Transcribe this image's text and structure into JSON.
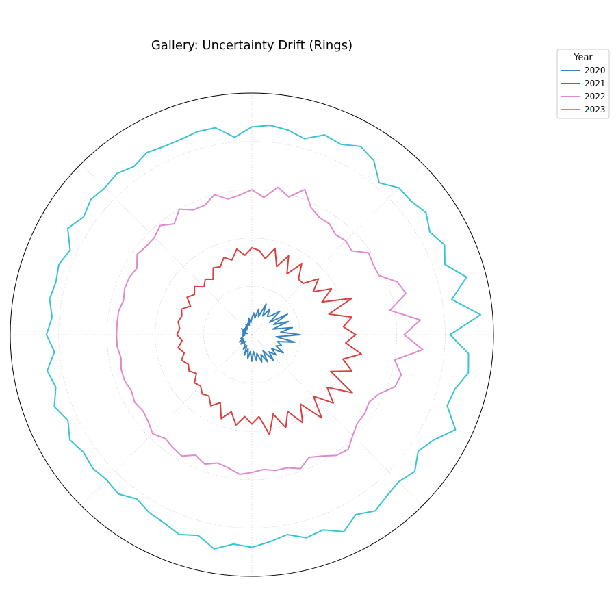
{
  "chart_data": {
    "type": "polar-line",
    "title": "Gallery: Uncertainty Drift (Rings)",
    "theta_unit": "degrees",
    "r_range": [
      0,
      1.0
    ],
    "grid": true,
    "radial_tick_labels": false,
    "angular_tick_labels": false,
    "legend": {
      "title": "Year",
      "placement": "outside-top-right"
    },
    "series": [
      {
        "name": "2020",
        "color": "#3a84bd",
        "theta": [
          0,
          5,
          10,
          15,
          20,
          25,
          30,
          35,
          40,
          45,
          50,
          55,
          60,
          65,
          70,
          75,
          80,
          85,
          90,
          95,
          100,
          105,
          110,
          115,
          120,
          125,
          130,
          135,
          140,
          145,
          150,
          155,
          160,
          165,
          170,
          175,
          180,
          185,
          190,
          195,
          200,
          205,
          210,
          215,
          220,
          225,
          230,
          235,
          240,
          245,
          250,
          255,
          260,
          265,
          270,
          275,
          280,
          285,
          290,
          295,
          300,
          305,
          310,
          315,
          320,
          325,
          330,
          335,
          340,
          345,
          350,
          355
        ],
        "r": [
          0.2,
          0.12,
          0.17,
          0.09,
          0.16,
          0.1,
          0.17,
          0.09,
          0.15,
          0.11,
          0.1,
          0.13,
          0.09,
          0.14,
          0.08,
          0.11,
          0.07,
          0.09,
          0.07,
          0.05,
          0.07,
          0.04,
          0.05,
          0.04,
          0.05,
          0.03,
          0.04,
          0.03,
          0.04,
          0.03,
          0.05,
          0.03,
          0.04,
          0.02,
          0.04,
          0.03,
          0.04,
          0.03,
          0.04,
          0.04,
          0.05,
          0.04,
          0.06,
          0.04,
          0.06,
          0.04,
          0.05,
          0.05,
          0.07,
          0.05,
          0.09,
          0.06,
          0.1,
          0.07,
          0.11,
          0.07,
          0.11,
          0.08,
          0.12,
          0.09,
          0.13,
          0.08,
          0.14,
          0.1,
          0.13,
          0.1,
          0.15,
          0.11,
          0.13,
          0.11,
          0.18,
          0.1
        ]
      },
      {
        "name": "2021",
        "color": "#d94141",
        "theta": [
          0,
          5,
          10,
          15,
          20,
          25,
          30,
          35,
          40,
          45,
          50,
          55,
          60,
          65,
          70,
          75,
          80,
          85,
          90,
          95,
          100,
          105,
          110,
          115,
          120,
          125,
          130,
          135,
          140,
          145,
          150,
          155,
          160,
          165,
          170,
          175,
          180,
          185,
          190,
          195,
          200,
          205,
          210,
          215,
          220,
          225,
          230,
          235,
          240,
          245,
          250,
          255,
          260,
          265,
          270,
          275,
          280,
          285,
          290,
          295,
          300,
          305,
          310,
          315,
          320,
          325,
          330,
          335,
          340,
          345,
          350,
          355
        ],
        "r": [
          0.43,
          0.38,
          0.42,
          0.33,
          0.44,
          0.32,
          0.38,
          0.31,
          0.36,
          0.3,
          0.3,
          0.36,
          0.29,
          0.36,
          0.3,
          0.37,
          0.32,
          0.35,
          0.36,
          0.33,
          0.36,
          0.32,
          0.34,
          0.31,
          0.32,
          0.28,
          0.3,
          0.28,
          0.31,
          0.29,
          0.31,
          0.28,
          0.31,
          0.3,
          0.31,
          0.3,
          0.31,
          0.29,
          0.31,
          0.29,
          0.31,
          0.29,
          0.3,
          0.28,
          0.31,
          0.3,
          0.32,
          0.31,
          0.34,
          0.31,
          0.37,
          0.33,
          0.38,
          0.34,
          0.37,
          0.34,
          0.42,
          0.34,
          0.41,
          0.35,
          0.42,
          0.35,
          0.45,
          0.36,
          0.44,
          0.38,
          0.48,
          0.36,
          0.44,
          0.39,
          0.46,
          0.39
        ]
      },
      {
        "name": "2022",
        "color": "#e089cc",
        "theta": [
          0,
          5,
          10,
          15,
          20,
          25,
          30,
          35,
          40,
          45,
          50,
          55,
          60,
          65,
          70,
          75,
          80,
          85,
          90,
          95,
          100,
          105,
          110,
          115,
          120,
          125,
          130,
          135,
          140,
          145,
          150,
          155,
          160,
          165,
          170,
          175,
          180,
          185,
          190,
          195,
          200,
          205,
          210,
          215,
          220,
          225,
          230,
          235,
          240,
          245,
          250,
          255,
          260,
          265,
          270,
          275,
          280,
          285,
          290,
          295,
          300,
          305,
          310,
          315,
          320,
          325,
          330,
          335,
          340,
          345,
          350,
          355
        ],
        "r": [
          0.63,
          0.7,
          0.58,
          0.66,
          0.64,
          0.58,
          0.58,
          0.59,
          0.54,
          0.55,
          0.54,
          0.56,
          0.56,
          0.58,
          0.64,
          0.59,
          0.62,
          0.57,
          0.6,
          0.58,
          0.57,
          0.6,
          0.57,
          0.57,
          0.6,
          0.56,
          0.59,
          0.57,
          0.57,
          0.58,
          0.55,
          0.56,
          0.56,
          0.55,
          0.56,
          0.56,
          0.56,
          0.56,
          0.55,
          0.56,
          0.56,
          0.55,
          0.56,
          0.55,
          0.56,
          0.58,
          0.56,
          0.57,
          0.58,
          0.55,
          0.57,
          0.55,
          0.56,
          0.58,
          0.57,
          0.56,
          0.57,
          0.57,
          0.59,
          0.56,
          0.58,
          0.61,
          0.62,
          0.59,
          0.57,
          0.57,
          0.56,
          0.58,
          0.63,
          0.64,
          0.6,
          0.71
        ]
      },
      {
        "name": "2023",
        "color": "#3ac3d1",
        "theta": [
          0,
          5,
          10,
          15,
          20,
          25,
          30,
          35,
          40,
          45,
          50,
          55,
          60,
          65,
          70,
          75,
          80,
          85,
          90,
          95,
          100,
          105,
          110,
          115,
          120,
          125,
          130,
          135,
          140,
          145,
          150,
          155,
          160,
          165,
          170,
          175,
          180,
          185,
          190,
          195,
          200,
          205,
          210,
          215,
          220,
          225,
          230,
          235,
          240,
          245,
          250,
          255,
          260,
          265,
          270,
          275,
          280,
          285,
          290,
          295,
          300,
          305,
          310,
          315,
          320,
          325,
          330,
          335,
          340,
          345,
          350,
          355
        ],
        "r": [
          0.82,
          0.95,
          0.84,
          0.92,
          0.85,
          0.88,
          0.85,
          0.88,
          0.86,
          0.86,
          0.82,
          0.88,
          0.9,
          0.87,
          0.88,
          0.84,
          0.86,
          0.87,
          0.86,
          0.82,
          0.87,
          0.87,
          0.86,
          0.86,
          0.87,
          0.85,
          0.87,
          0.86,
          0.87,
          0.85,
          0.88,
          0.83,
          0.85,
          0.84,
          0.85,
          0.83,
          0.85,
          0.82,
          0.86,
          0.84,
          0.87,
          0.84,
          0.87,
          0.85,
          0.86,
          0.85,
          0.86,
          0.83,
          0.85,
          0.86,
          0.88,
          0.86,
          0.9,
          0.87,
          0.88,
          0.86,
          0.84,
          0.87,
          0.86,
          0.9,
          0.86,
          0.89,
          0.87,
          0.86,
          0.88,
          0.84,
          0.87,
          0.93,
          0.86,
          0.87,
          0.91,
          0.9
        ]
      }
    ]
  }
}
